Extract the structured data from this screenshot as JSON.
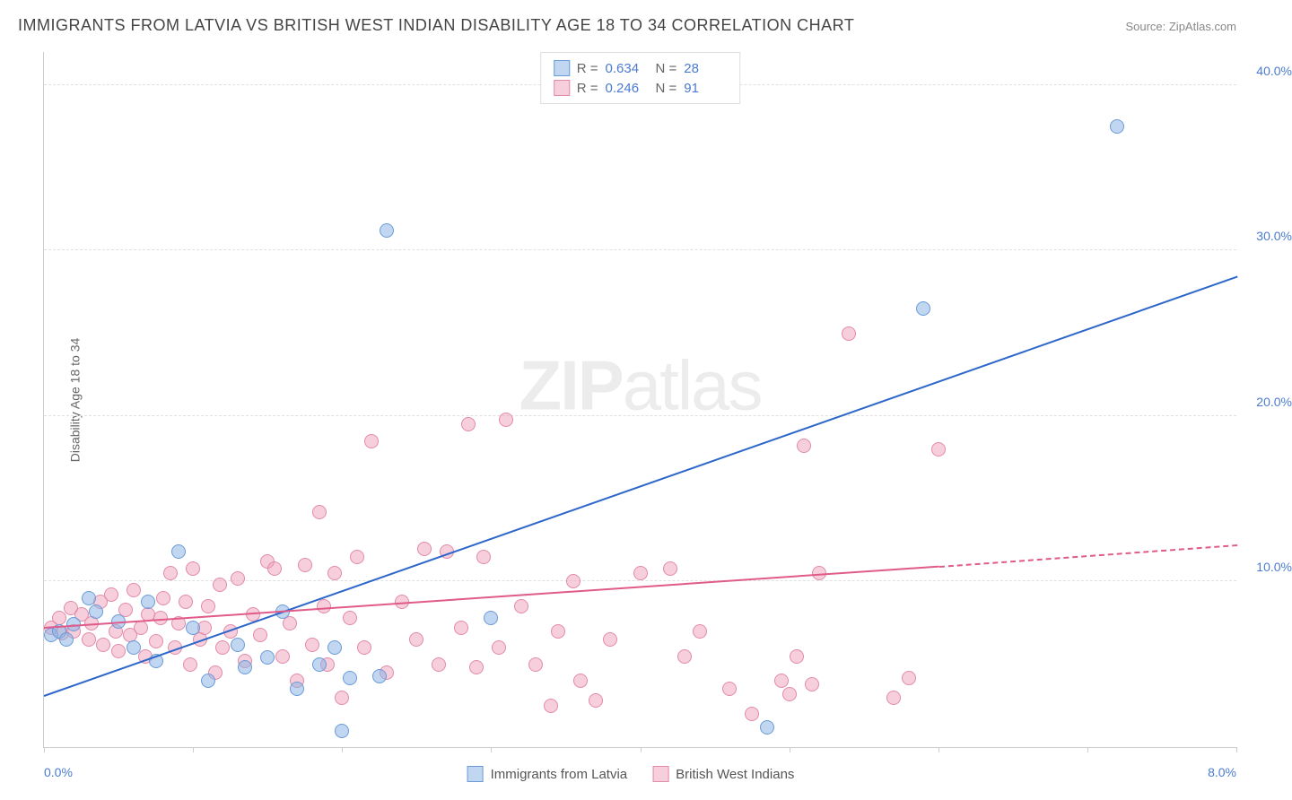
{
  "title": "IMMIGRANTS FROM LATVIA VS BRITISH WEST INDIAN DISABILITY AGE 18 TO 34 CORRELATION CHART",
  "source": "Source: ZipAtlas.com",
  "y_axis_label": "Disability Age 18 to 34",
  "watermark_bold": "ZIP",
  "watermark_light": "atlas",
  "chart": {
    "type": "scatter",
    "background_color": "#ffffff",
    "grid_color": "#e0e0e0",
    "axis_color": "#cccccc",
    "tick_label_color": "#4a7bd0",
    "tick_label_fontsize": 14,
    "xlim": [
      0.0,
      8.0
    ],
    "ylim": [
      0.0,
      42.0
    ],
    "x_ticks": [
      0.0,
      1.0,
      2.0,
      3.0,
      4.0,
      5.0,
      6.0,
      7.0,
      8.0
    ],
    "x_tick_labels_shown": {
      "0": "0.0%",
      "8": "8.0%"
    },
    "y_ticks": [
      10.0,
      20.0,
      30.0,
      40.0
    ],
    "y_tick_labels": [
      "10.0%",
      "20.0%",
      "30.0%",
      "40.0%"
    ],
    "marker_radius": 8,
    "series": [
      {
        "name": "Immigrants from Latvia",
        "color_fill": "rgba(140,180,230,0.55)",
        "color_stroke": "#6a9bd8",
        "trend_color": "#2d67c9",
        "trend_width": 2,
        "r": "0.634",
        "n": "28",
        "trend": {
          "x1": 0.0,
          "y1": 3.2,
          "x2": 8.0,
          "y2": 28.5
        },
        "points": [
          [
            0.05,
            6.8
          ],
          [
            0.1,
            7.0
          ],
          [
            0.15,
            6.5
          ],
          [
            0.2,
            7.4
          ],
          [
            0.3,
            9.0
          ],
          [
            0.35,
            8.2
          ],
          [
            0.5,
            7.6
          ],
          [
            0.6,
            6.0
          ],
          [
            0.7,
            8.8
          ],
          [
            0.75,
            5.2
          ],
          [
            0.9,
            11.8
          ],
          [
            1.0,
            7.2
          ],
          [
            1.1,
            4.0
          ],
          [
            1.3,
            6.2
          ],
          [
            1.35,
            4.8
          ],
          [
            1.5,
            5.4
          ],
          [
            1.6,
            8.2
          ],
          [
            1.7,
            3.5
          ],
          [
            1.85,
            5.0
          ],
          [
            1.95,
            6.0
          ],
          [
            2.0,
            1.0
          ],
          [
            2.05,
            4.2
          ],
          [
            2.25,
            4.3
          ],
          [
            2.3,
            31.2
          ],
          [
            3.0,
            7.8
          ],
          [
            4.85,
            1.2
          ],
          [
            5.9,
            26.5
          ],
          [
            7.2,
            37.5
          ]
        ]
      },
      {
        "name": "British West Indians",
        "color_fill": "rgba(240,160,185,0.5)",
        "color_stroke": "#e28aa8",
        "trend_color": "#e05a8a",
        "trend_width": 2,
        "r": "0.246",
        "n": "91",
        "trend": {
          "x1": 0.0,
          "y1": 7.3,
          "x2": 6.0,
          "y2": 11.0
        },
        "trend_dash": {
          "x1": 6.0,
          "y1": 11.0,
          "x2": 8.0,
          "y2": 12.3
        },
        "points": [
          [
            0.05,
            7.2
          ],
          [
            0.1,
            7.8
          ],
          [
            0.12,
            6.9
          ],
          [
            0.18,
            8.4
          ],
          [
            0.2,
            7.0
          ],
          [
            0.25,
            8.0
          ],
          [
            0.3,
            6.5
          ],
          [
            0.32,
            7.5
          ],
          [
            0.38,
            8.8
          ],
          [
            0.4,
            6.2
          ],
          [
            0.45,
            9.2
          ],
          [
            0.48,
            7.0
          ],
          [
            0.5,
            5.8
          ],
          [
            0.55,
            8.3
          ],
          [
            0.58,
            6.8
          ],
          [
            0.6,
            9.5
          ],
          [
            0.65,
            7.2
          ],
          [
            0.68,
            5.5
          ],
          [
            0.7,
            8.0
          ],
          [
            0.75,
            6.4
          ],
          [
            0.78,
            7.8
          ],
          [
            0.8,
            9.0
          ],
          [
            0.85,
            10.5
          ],
          [
            0.88,
            6.0
          ],
          [
            0.9,
            7.5
          ],
          [
            0.95,
            8.8
          ],
          [
            0.98,
            5.0
          ],
          [
            1.0,
            10.8
          ],
          [
            1.05,
            6.5
          ],
          [
            1.08,
            7.2
          ],
          [
            1.1,
            8.5
          ],
          [
            1.15,
            4.5
          ],
          [
            1.18,
            9.8
          ],
          [
            1.2,
            6.0
          ],
          [
            1.25,
            7.0
          ],
          [
            1.3,
            10.2
          ],
          [
            1.35,
            5.2
          ],
          [
            1.4,
            8.0
          ],
          [
            1.45,
            6.8
          ],
          [
            1.5,
            11.2
          ],
          [
            1.55,
            10.8
          ],
          [
            1.6,
            5.5
          ],
          [
            1.65,
            7.5
          ],
          [
            1.7,
            4.0
          ],
          [
            1.75,
            11.0
          ],
          [
            1.8,
            6.2
          ],
          [
            1.85,
            14.2
          ],
          [
            1.88,
            8.5
          ],
          [
            1.9,
            5.0
          ],
          [
            1.95,
            10.5
          ],
          [
            2.0,
            3.0
          ],
          [
            2.05,
            7.8
          ],
          [
            2.1,
            11.5
          ],
          [
            2.15,
            6.0
          ],
          [
            2.2,
            18.5
          ],
          [
            2.3,
            4.5
          ],
          [
            2.4,
            8.8
          ],
          [
            2.5,
            6.5
          ],
          [
            2.55,
            12.0
          ],
          [
            2.65,
            5.0
          ],
          [
            2.7,
            11.8
          ],
          [
            2.8,
            7.2
          ],
          [
            2.85,
            19.5
          ],
          [
            2.9,
            4.8
          ],
          [
            2.95,
            11.5
          ],
          [
            3.05,
            6.0
          ],
          [
            3.1,
            19.8
          ],
          [
            3.2,
            8.5
          ],
          [
            3.3,
            5.0
          ],
          [
            3.4,
            2.5
          ],
          [
            3.45,
            7.0
          ],
          [
            3.55,
            10.0
          ],
          [
            3.7,
            2.8
          ],
          [
            3.8,
            6.5
          ],
          [
            4.0,
            10.5
          ],
          [
            4.2,
            10.8
          ],
          [
            4.4,
            7.0
          ],
          [
            4.6,
            3.5
          ],
          [
            4.75,
            2.0
          ],
          [
            4.95,
            4.0
          ],
          [
            5.0,
            3.2
          ],
          [
            5.05,
            5.5
          ],
          [
            5.1,
            18.2
          ],
          [
            5.15,
            3.8
          ],
          [
            5.4,
            25.0
          ],
          [
            5.7,
            3.0
          ],
          [
            5.8,
            4.2
          ],
          [
            6.0,
            18.0
          ],
          [
            5.2,
            10.5
          ],
          [
            4.3,
            5.5
          ],
          [
            3.6,
            4.0
          ]
        ]
      }
    ]
  },
  "legend_top": {
    "rows": [
      {
        "swatch_fill": "rgba(140,180,230,0.55)",
        "swatch_stroke": "#6a9bd8",
        "r_label": "R =",
        "r_val": "0.634",
        "n_label": "N =",
        "n_val": "28"
      },
      {
        "swatch_fill": "rgba(240,160,185,0.5)",
        "swatch_stroke": "#e28aa8",
        "r_label": "R =",
        "r_val": "0.246",
        "n_label": "N =",
        "n_val": "91"
      }
    ]
  },
  "legend_bottom": {
    "items": [
      {
        "swatch_fill": "rgba(140,180,230,0.55)",
        "swatch_stroke": "#6a9bd8",
        "label": "Immigrants from Latvia"
      },
      {
        "swatch_fill": "rgba(240,160,185,0.5)",
        "swatch_stroke": "#e28aa8",
        "label": "British West Indians"
      }
    ]
  }
}
